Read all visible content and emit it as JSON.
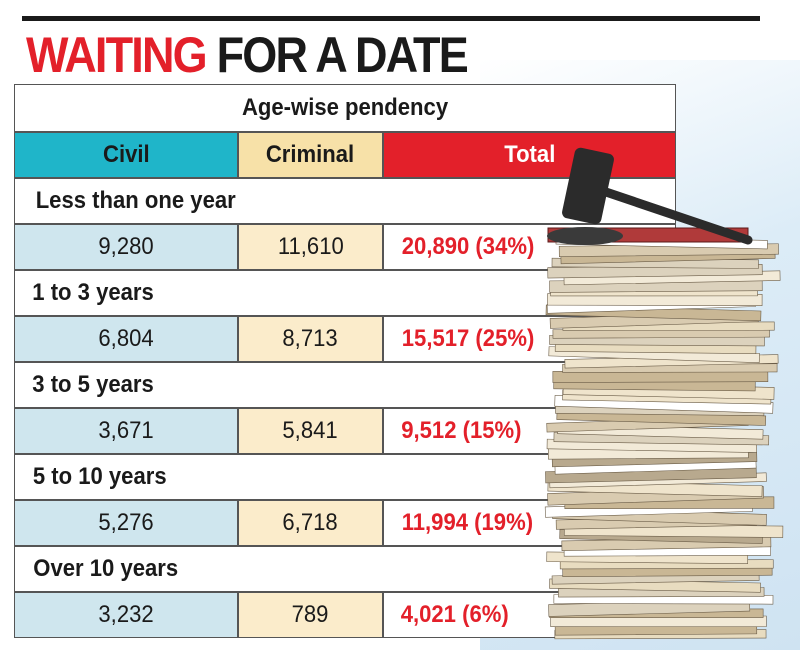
{
  "header": {
    "title_highlight": "WAITING",
    "title_rest": "FOR A DATE"
  },
  "table": {
    "caption": "Age-wise pendency",
    "columns": [
      "Civil",
      "Criminal",
      "Total"
    ],
    "groups": [
      {
        "label": "Less than one year",
        "cells": [
          "9,280",
          "11,610",
          "20,890 (34%)"
        ]
      },
      {
        "label": "1 to 3 years",
        "cells": [
          "6,804",
          "8,713",
          "15,517 (25%)"
        ]
      },
      {
        "label": "3 to 5 years",
        "cells": [
          "3,671",
          "5,841",
          "9,512 (15%)"
        ]
      },
      {
        "label": "5 to 10 years",
        "cells": [
          "5,276",
          "6,718",
          "11,994 (19%)"
        ]
      },
      {
        "label": "Over 10 years",
        "cells": [
          "3,232",
          "789",
          "4,021 (6%)"
        ]
      }
    ]
  }
}
